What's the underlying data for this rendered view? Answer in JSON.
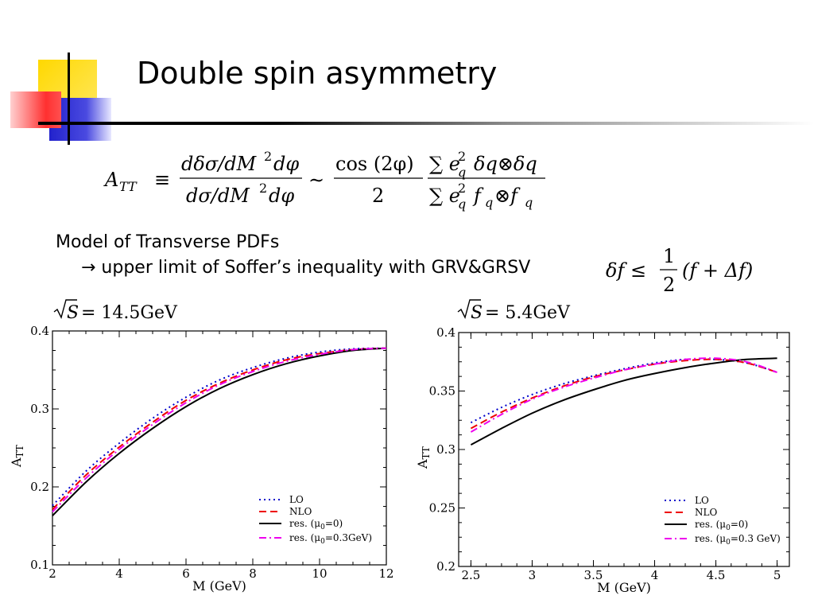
{
  "slide": {
    "title": "Double spin asymmetry",
    "model_line": "Model of Transverse PDFs",
    "limit_line": "→ upper limit of Soffer’s inequality with GRV&GRSV"
  },
  "formula": {
    "lhs": "A",
    "lhs_sub": "TT",
    "equiv": "≡",
    "num1": "dδσ/dM",
    "num1_tail": "dφ",
    "den1": "dσ/dM",
    "den1_tail": "dφ",
    "sim": "∼",
    "cos_num": "cos (2φ)",
    "cos_den": "2",
    "sum_num": "∑ e",
    "sum_num_tail": "δq⊗δq",
    "sum_den": "∑ e",
    "sum_den_tail": "f",
    "sum_den_tail2": "⊗f",
    "sub_q": "q",
    "sup_2": "2"
  },
  "inequality": {
    "lhs": "δf ≤",
    "frac_num": "1",
    "frac_den": "2",
    "rhs": "(f + Δf)"
  },
  "chart_data": [
    {
      "type": "line",
      "energy_label": "= 14.5GeV",
      "energy_sqrt": "S",
      "xlabel": "M (GeV)",
      "ylabel": "A",
      "ylabel_sub": "TT",
      "xlim": [
        2,
        12
      ],
      "ylim": [
        0.1,
        0.4
      ],
      "xticks": [
        2,
        4,
        6,
        8,
        10,
        12
      ],
      "yticks": [
        0.1,
        0.2,
        0.3,
        0.4
      ],
      "xtick_labels": [
        "2",
        "4",
        "6",
        "8",
        "10",
        "12"
      ],
      "ytick_labels": [
        "0.1",
        "0.2",
        "0.3",
        "0.4"
      ],
      "legend_position": "bottom-right",
      "series": [
        {
          "name": "LO",
          "color": "#0000cc",
          "style": "dotted",
          "x": [
            2,
            3,
            4,
            5,
            6,
            7,
            8,
            9,
            10,
            11,
            12
          ],
          "y": [
            0.176,
            0.22,
            0.256,
            0.288,
            0.315,
            0.337,
            0.353,
            0.365,
            0.373,
            0.377,
            0.378
          ]
        },
        {
          "name": "NLO",
          "color": "#ee0000",
          "style": "dashed",
          "x": [
            2,
            3,
            4,
            5,
            6,
            7,
            8,
            9,
            10,
            11,
            12
          ],
          "y": [
            0.171,
            0.215,
            0.251,
            0.283,
            0.311,
            0.333,
            0.35,
            0.363,
            0.371,
            0.376,
            0.378
          ]
        },
        {
          "name": "res. (μ",
          "name_sub": "0",
          "name_tail": "=0)",
          "color": "#000000",
          "style": "solid",
          "x": [
            2,
            3,
            4,
            5,
            6,
            7,
            8,
            9,
            10,
            11,
            12
          ],
          "y": [
            0.163,
            0.206,
            0.243,
            0.275,
            0.303,
            0.326,
            0.344,
            0.358,
            0.368,
            0.375,
            0.378
          ]
        },
        {
          "name": "res. (μ",
          "name_sub": "0",
          "name_tail": "=0.3GeV)",
          "color": "#ee00ee",
          "style": "dashdot",
          "x": [
            2,
            3,
            4,
            5,
            6,
            7,
            8,
            9,
            10,
            11,
            12
          ],
          "y": [
            0.168,
            0.211,
            0.248,
            0.28,
            0.308,
            0.331,
            0.348,
            0.361,
            0.37,
            0.376,
            0.378
          ]
        }
      ]
    },
    {
      "type": "line",
      "energy_label": "= 5.4GeV",
      "energy_sqrt": "S",
      "xlabel": "M (GeV)",
      "ylabel": "A",
      "ylabel_sub": "TT",
      "xlim": [
        2.4,
        5.1
      ],
      "ylim": [
        0.2,
        0.4
      ],
      "xticks": [
        2.5,
        3,
        3.5,
        4,
        4.5,
        5
      ],
      "yticks": [
        0.2,
        0.25,
        0.3,
        0.35,
        0.4
      ],
      "xtick_labels": [
        "2.5",
        "3",
        "3.5",
        "4",
        "4.5",
        "5"
      ],
      "ytick_labels": [
        "0.2",
        "0.25",
        "0.3",
        "0.35",
        "0.4"
      ],
      "legend_position": "bottom-right",
      "series": [
        {
          "name": "LO",
          "color": "#0000cc",
          "style": "dotted",
          "x": [
            2.5,
            2.75,
            3,
            3.25,
            3.5,
            3.75,
            4,
            4.25,
            4.5,
            4.75,
            5
          ],
          "y": [
            0.323,
            0.336,
            0.347,
            0.356,
            0.363,
            0.369,
            0.374,
            0.377,
            0.377,
            0.374,
            0.366
          ]
        },
        {
          "name": "NLO",
          "color": "#ee0000",
          "style": "dashed",
          "x": [
            2.5,
            2.75,
            3,
            3.25,
            3.5,
            3.75,
            4,
            4.25,
            4.5,
            4.75,
            5
          ],
          "y": [
            0.318,
            0.332,
            0.344,
            0.354,
            0.362,
            0.368,
            0.373,
            0.376,
            0.377,
            0.374,
            0.366
          ]
        },
        {
          "name": "res. (μ",
          "name_sub": "0",
          "name_tail": "=0)",
          "color": "#000000",
          "style": "solid",
          "x": [
            2.5,
            2.75,
            3,
            3.25,
            3.5,
            3.75,
            4,
            4.25,
            4.5,
            4.75,
            5
          ],
          "y": [
            0.304,
            0.318,
            0.331,
            0.342,
            0.351,
            0.359,
            0.365,
            0.37,
            0.374,
            0.377,
            0.378
          ]
        },
        {
          "name": "res. (μ",
          "name_sub": "0",
          "name_tail": "=0.3 GeV)",
          "color": "#ee00ee",
          "style": "dashdot",
          "x": [
            2.5,
            2.75,
            3,
            3.25,
            3.5,
            3.75,
            4,
            4.25,
            4.5,
            4.75,
            5
          ],
          "y": [
            0.315,
            0.33,
            0.343,
            0.353,
            0.361,
            0.368,
            0.373,
            0.377,
            0.378,
            0.375,
            0.366
          ]
        }
      ]
    }
  ]
}
